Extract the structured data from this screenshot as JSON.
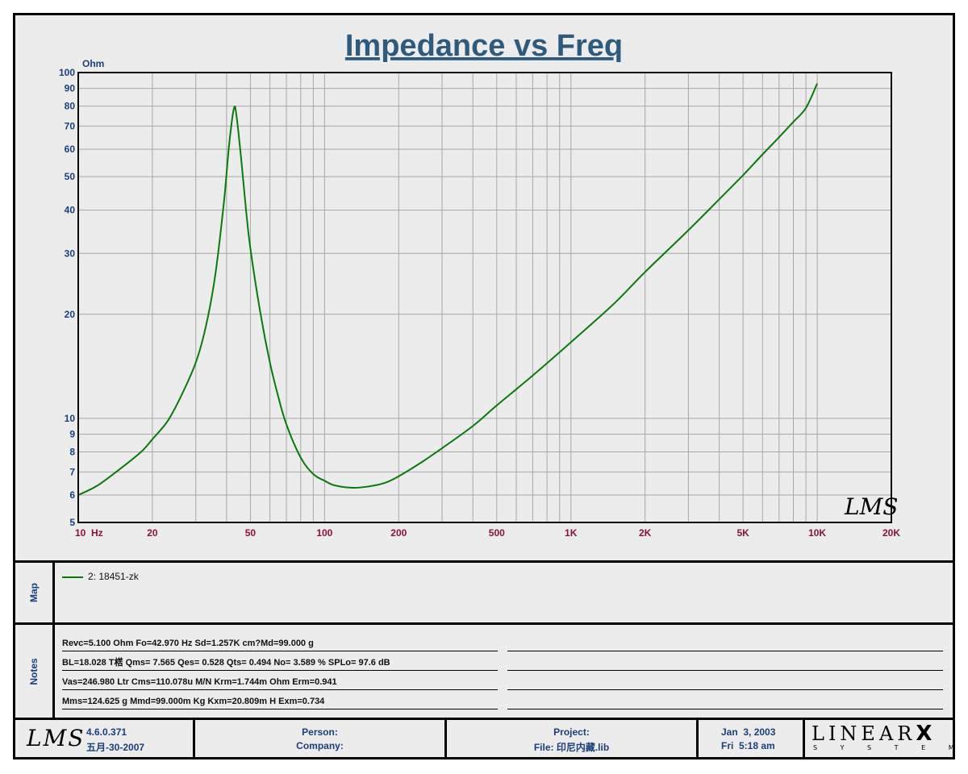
{
  "chart_data": {
    "type": "line",
    "title": "Impedance vs Freq",
    "ylabel": "Ohm",
    "x_scale": "log",
    "y_scale": "log",
    "xlim": [
      10,
      20000
    ],
    "ylim": [
      5,
      100
    ],
    "x_ticks": [
      {
        "v": 10,
        "label": "10  Hz"
      },
      {
        "v": 20,
        "label": "20"
      },
      {
        "v": 50,
        "label": "50"
      },
      {
        "v": 100,
        "label": "100"
      },
      {
        "v": 200,
        "label": "200"
      },
      {
        "v": 500,
        "label": "500"
      },
      {
        "v": 1000,
        "label": "1K"
      },
      {
        "v": 2000,
        "label": "2K"
      },
      {
        "v": 5000,
        "label": "5K"
      },
      {
        "v": 10000,
        "label": "10K"
      },
      {
        "v": 20000,
        "label": "20K"
      }
    ],
    "y_ticks": [
      {
        "v": 5,
        "label": "5"
      },
      {
        "v": 6,
        "label": "6"
      },
      {
        "v": 7,
        "label": "7"
      },
      {
        "v": 8,
        "label": "8"
      },
      {
        "v": 9,
        "label": "9"
      },
      {
        "v": 10,
        "label": "10"
      },
      {
        "v": 20,
        "label": "20"
      },
      {
        "v": 30,
        "label": "30"
      },
      {
        "v": 40,
        "label": "40"
      },
      {
        "v": 50,
        "label": "50"
      },
      {
        "v": 60,
        "label": "60"
      },
      {
        "v": 70,
        "label": "70"
      },
      {
        "v": 80,
        "label": "80"
      },
      {
        "v": 90,
        "label": "90"
      },
      {
        "v": 100,
        "label": "100"
      }
    ],
    "grid": true,
    "series": [
      {
        "name": "2: 18451-zk",
        "color": "#0a7a0a",
        "points": [
          [
            10,
            6.0
          ],
          [
            12,
            6.4
          ],
          [
            15,
            7.2
          ],
          [
            18,
            8.0
          ],
          [
            20,
            8.7
          ],
          [
            23,
            9.8
          ],
          [
            26,
            11.5
          ],
          [
            30,
            14.5
          ],
          [
            33,
            18.5
          ],
          [
            36,
            26
          ],
          [
            39,
            42
          ],
          [
            41,
            62
          ],
          [
            42.9,
            79
          ],
          [
            44,
            74
          ],
          [
            46,
            55
          ],
          [
            48,
            40
          ],
          [
            50,
            31
          ],
          [
            55,
            20
          ],
          [
            60,
            14.5
          ],
          [
            65,
            11.5
          ],
          [
            70,
            9.6
          ],
          [
            80,
            7.7
          ],
          [
            90,
            6.9
          ],
          [
            100,
            6.6
          ],
          [
            110,
            6.4
          ],
          [
            130,
            6.3
          ],
          [
            150,
            6.35
          ],
          [
            175,
            6.5
          ],
          [
            200,
            6.8
          ],
          [
            250,
            7.5
          ],
          [
            300,
            8.2
          ],
          [
            400,
            9.5
          ],
          [
            500,
            10.9
          ],
          [
            700,
            13.3
          ],
          [
            1000,
            16.6
          ],
          [
            1500,
            21.5
          ],
          [
            2000,
            26.5
          ],
          [
            3000,
            35
          ],
          [
            4000,
            43
          ],
          [
            5000,
            50.5
          ],
          [
            6000,
            58
          ],
          [
            7000,
            65
          ],
          [
            8000,
            72
          ],
          [
            9000,
            79
          ],
          [
            10000,
            93
          ]
        ]
      }
    ]
  },
  "watermark": "LMS",
  "map": {
    "label": "Map",
    "legend": "2: 18451-zk",
    "legend_color": "#0a7a0a"
  },
  "notes": {
    "label": "Notes",
    "lines": [
      "Revc=5.100 Ohm  Fo=42.970 Hz  Sd=1.257K cm?Md=99.000 g",
      "BL=18.028 T楛  Qms= 7.565  Qes= 0.528  Qts= 0.494  No= 3.589 %  SPLo= 97.6 dB",
      "Vas=246.980 Ltr  Cms=110.078u M/N  Krm=1.744m Ohm  Erm=0.941",
      "Mms=124.625 g  Mmd=99.000m Kg  Kxm=20.809m H  Exm=0.734"
    ]
  },
  "footer": {
    "logo": "LMS",
    "version": "4.6.0.371",
    "build_date": "五月-30-2007",
    "person_label": "Person:",
    "company_label": "Company:",
    "project_label": "Project:",
    "file_label": "File: 印尼内藏.lib",
    "date": "Jan  3, 2003",
    "time": "Fri  5:18 am",
    "brand_top": "LINEAR",
    "brand_x": "X",
    "brand_bottom": "S Y S T E M S"
  },
  "colors": {
    "title": "#2e5a7e",
    "axis_y_labels": "#1a3f7a",
    "axis_x_labels": "#8b1040",
    "curve": "#0a7a0a",
    "background": "#ececec"
  }
}
